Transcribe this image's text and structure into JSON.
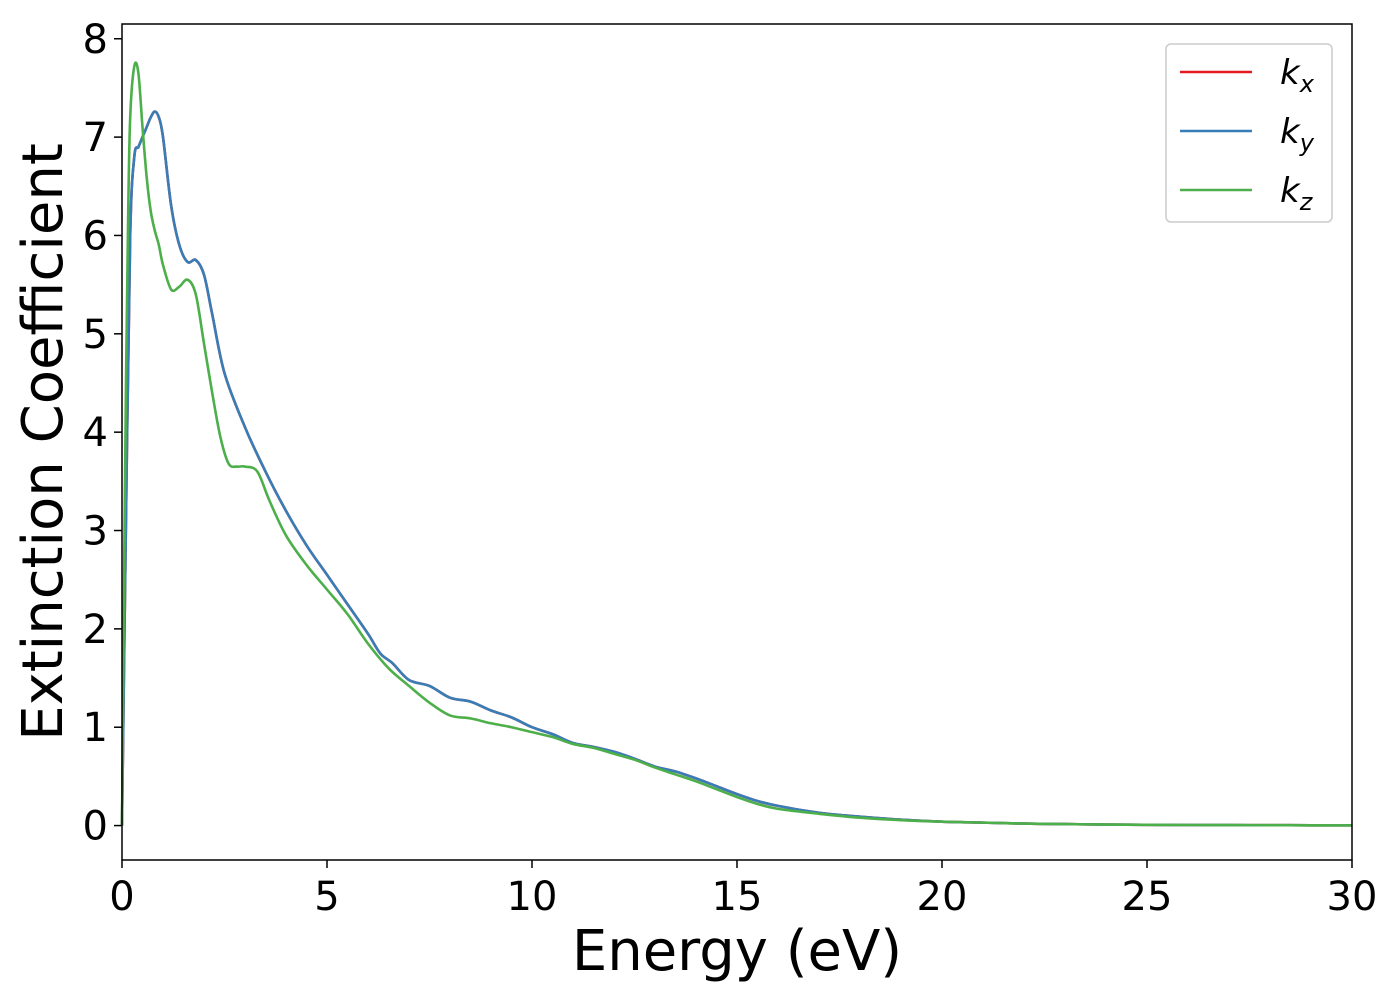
{
  "chart_data": {
    "type": "line",
    "xlabel": "Energy (eV)",
    "ylabel": "Extinction Coefficient",
    "xlim": [
      0,
      30
    ],
    "ylim": [
      -0.35,
      8.15
    ],
    "xticks": [
      0,
      5,
      10,
      15,
      20,
      25,
      30
    ],
    "yticks": [
      0,
      1,
      2,
      3,
      4,
      5,
      6,
      7,
      8
    ],
    "grid": false,
    "legend": "top-right",
    "series": [
      {
        "name": "k",
        "subscript": "x",
        "color": "#e41a1c",
        "x": [
          0,
          0.1,
          0.2,
          0.3,
          0.4,
          0.5,
          0.6,
          0.7,
          0.8,
          0.9,
          1.0,
          1.2,
          1.4,
          1.6,
          1.8,
          2.0,
          2.2,
          2.5,
          3.0,
          3.5,
          4.0,
          4.5,
          5.0,
          5.5,
          6.0,
          6.3,
          6.6,
          7.0,
          7.5,
          8.0,
          8.5,
          9.0,
          9.5,
          10.0,
          10.5,
          11.0,
          11.5,
          12.0,
          12.5,
          13.0,
          13.5,
          14.0,
          14.5,
          15.0,
          15.5,
          16.0,
          17.0,
          18.0,
          19.0,
          20.0,
          21.0,
          22.0,
          23.0,
          24.0,
          25.0,
          26.0,
          27.0,
          28.0,
          29.0,
          30.0
        ],
        "y": [
          0,
          3.2,
          6.0,
          6.8,
          6.9,
          7.0,
          7.1,
          7.2,
          7.26,
          7.2,
          7.0,
          6.3,
          5.9,
          5.73,
          5.75,
          5.6,
          5.2,
          4.6,
          4.05,
          3.6,
          3.2,
          2.85,
          2.55,
          2.25,
          1.95,
          1.75,
          1.65,
          1.48,
          1.42,
          1.3,
          1.26,
          1.17,
          1.1,
          1.0,
          0.93,
          0.84,
          0.8,
          0.75,
          0.68,
          0.6,
          0.55,
          0.48,
          0.4,
          0.32,
          0.25,
          0.2,
          0.13,
          0.09,
          0.06,
          0.04,
          0.03,
          0.02,
          0.015,
          0.01,
          0.008,
          0.006,
          0.005,
          0.004,
          0.003,
          0.002
        ]
      },
      {
        "name": "k",
        "subscript": "y",
        "color": "#377eb8",
        "x": [
          0,
          0.1,
          0.2,
          0.3,
          0.4,
          0.5,
          0.6,
          0.7,
          0.8,
          0.9,
          1.0,
          1.2,
          1.4,
          1.6,
          1.8,
          2.0,
          2.2,
          2.5,
          3.0,
          3.5,
          4.0,
          4.5,
          5.0,
          5.5,
          6.0,
          6.3,
          6.6,
          7.0,
          7.5,
          8.0,
          8.5,
          9.0,
          9.5,
          10.0,
          10.5,
          11.0,
          11.5,
          12.0,
          12.5,
          13.0,
          13.5,
          14.0,
          14.5,
          15.0,
          15.5,
          16.0,
          17.0,
          18.0,
          19.0,
          20.0,
          21.0,
          22.0,
          23.0,
          24.0,
          25.0,
          26.0,
          27.0,
          28.0,
          29.0,
          30.0
        ],
        "y": [
          0,
          3.2,
          6.0,
          6.8,
          6.9,
          7.0,
          7.1,
          7.2,
          7.26,
          7.2,
          7.0,
          6.3,
          5.9,
          5.73,
          5.75,
          5.6,
          5.2,
          4.6,
          4.05,
          3.6,
          3.2,
          2.85,
          2.55,
          2.25,
          1.95,
          1.75,
          1.65,
          1.48,
          1.42,
          1.3,
          1.26,
          1.17,
          1.1,
          1.0,
          0.93,
          0.84,
          0.8,
          0.75,
          0.68,
          0.6,
          0.55,
          0.48,
          0.4,
          0.32,
          0.25,
          0.2,
          0.13,
          0.09,
          0.06,
          0.04,
          0.03,
          0.02,
          0.015,
          0.01,
          0.008,
          0.006,
          0.005,
          0.004,
          0.003,
          0.002
        ]
      },
      {
        "name": "k",
        "subscript": "z",
        "color": "#4daf4a",
        "x": [
          0,
          0.05,
          0.1,
          0.15,
          0.2,
          0.3,
          0.4,
          0.5,
          0.6,
          0.7,
          0.8,
          0.9,
          1.0,
          1.2,
          1.4,
          1.6,
          1.8,
          2.0,
          2.2,
          2.4,
          2.6,
          2.8,
          3.0,
          3.3,
          3.6,
          4.0,
          4.5,
          5.0,
          5.5,
          6.0,
          6.5,
          7.0,
          7.5,
          8.0,
          8.5,
          9.0,
          9.5,
          10.0,
          10.5,
          11.0,
          11.5,
          12.0,
          12.5,
          13.0,
          13.5,
          14.0,
          14.5,
          15.0,
          15.5,
          16.0,
          17.0,
          18.0,
          19.0,
          20.0,
          21.0,
          22.0,
          23.0,
          24.0,
          25.0,
          26.0,
          27.0,
          28.0,
          29.0,
          30.0
        ],
        "y": [
          0,
          2.5,
          4.6,
          6.2,
          7.2,
          7.72,
          7.65,
          7.1,
          6.6,
          6.25,
          6.05,
          5.9,
          5.7,
          5.45,
          5.48,
          5.55,
          5.4,
          4.9,
          4.4,
          3.95,
          3.68,
          3.65,
          3.65,
          3.6,
          3.3,
          2.95,
          2.65,
          2.4,
          2.15,
          1.85,
          1.6,
          1.42,
          1.25,
          1.12,
          1.09,
          1.04,
          1.0,
          0.95,
          0.9,
          0.83,
          0.79,
          0.73,
          0.67,
          0.59,
          0.52,
          0.45,
          0.37,
          0.29,
          0.22,
          0.17,
          0.12,
          0.08,
          0.055,
          0.04,
          0.03,
          0.02,
          0.015,
          0.01,
          0.008,
          0.006,
          0.005,
          0.004,
          0.003,
          0.002
        ]
      }
    ]
  }
}
